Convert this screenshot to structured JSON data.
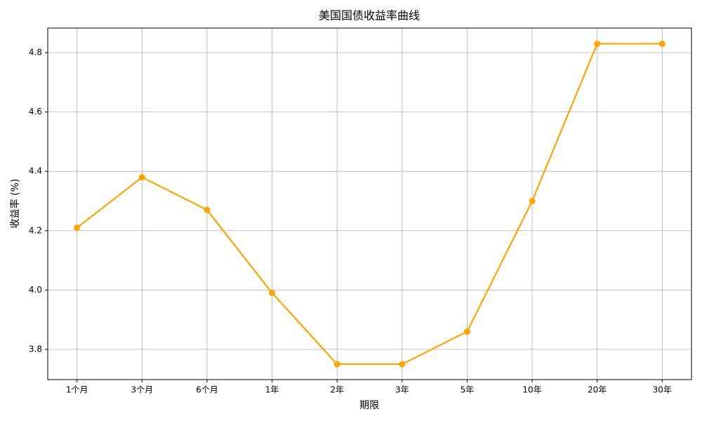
{
  "chart_data": {
    "type": "line",
    "title": "美国国债收益率曲线",
    "x_label": "期限",
    "y_label": "收益率 (%)",
    "categories": [
      "1个月",
      "3个月",
      "6个月",
      "1年",
      "2年",
      "3年",
      "5年",
      "10年",
      "20年",
      "30年"
    ],
    "series": [
      {
        "name": "收益率",
        "color": "#FFA500",
        "values": [
          4.21,
          4.38,
          4.27,
          3.99,
          3.75,
          3.75,
          3.86,
          4.3,
          4.83,
          4.83
        ]
      }
    ],
    "ylim": [
      3.698,
      4.883
    ],
    "yticks": [
      3.8,
      {
        "value": 4,
        "label": "4.0"
      },
      4.2,
      4.4,
      4.6,
      4.8
    ],
    "grid": true,
    "legend": false
  }
}
